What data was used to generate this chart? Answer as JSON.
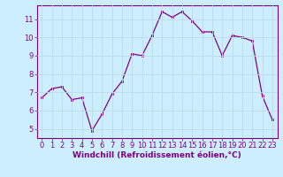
{
  "x": [
    0,
    1,
    2,
    3,
    4,
    5,
    6,
    7,
    8,
    9,
    10,
    11,
    12,
    13,
    14,
    15,
    16,
    17,
    18,
    19,
    20,
    21,
    22,
    23
  ],
  "y": [
    6.7,
    7.2,
    7.3,
    6.6,
    6.7,
    4.9,
    5.8,
    6.9,
    7.6,
    9.1,
    9.0,
    10.1,
    11.4,
    11.1,
    11.4,
    10.9,
    10.3,
    10.3,
    9.0,
    10.1,
    10.0,
    9.8,
    6.8,
    5.5
  ],
  "line_color": "#800080",
  "marker_color": "#800080",
  "bg_color": "#cceeff",
  "grid_color": "#aaddee",
  "xlabel": "Windchill (Refroidissement éolien,°C)",
  "xlim": [
    -0.5,
    23.5
  ],
  "ylim": [
    4.5,
    11.75
  ],
  "yticks": [
    5,
    6,
    7,
    8,
    9,
    10,
    11
  ],
  "xticks": [
    0,
    1,
    2,
    3,
    4,
    5,
    6,
    7,
    8,
    9,
    10,
    11,
    12,
    13,
    14,
    15,
    16,
    17,
    18,
    19,
    20,
    21,
    22,
    23
  ],
  "label_fontsize": 6.5,
  "tick_fontsize": 6.0
}
